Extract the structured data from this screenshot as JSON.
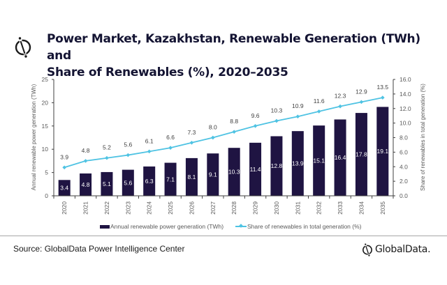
{
  "header": {
    "title_line1": "Power Market, Kazakhstan, Renewable Generation (TWh) and",
    "title_line2": "Share of Renewables (%), 2020–2035",
    "logo_icon": "globaldata-logo-icon"
  },
  "chart_data": {
    "type": "bar+line",
    "title": "Power Market, Kazakhstan, Renewable Generation (TWh) and Share of Renewables (%), 2020–2035",
    "categories": [
      "2020",
      "2021",
      "2022",
      "2023",
      "2024",
      "2025",
      "2026",
      "2027",
      "2028",
      "2029",
      "2030",
      "2031",
      "2032",
      "2033",
      "2034",
      "2035"
    ],
    "series": [
      {
        "name": "Annual renewable power generation (TWh)",
        "type": "bar",
        "axis": "left",
        "color": "#1f1442",
        "values": [
          3.4,
          4.8,
          5.1,
          5.6,
          6.3,
          7.1,
          8.1,
          9.1,
          10.3,
          11.4,
          12.8,
          13.9,
          15.1,
          16.4,
          17.8,
          19.1
        ],
        "labels": [
          "3.4",
          "4.8",
          "5.1",
          "5.6",
          "6.3",
          "7.1",
          "8.1",
          "9.1",
          "10.3",
          "11.4",
          "12.8",
          "13.9",
          "15.1",
          "16.4",
          "17.8",
          "19.1"
        ]
      },
      {
        "name": "Share of renewables in total generation (%)",
        "type": "line",
        "axis": "right",
        "color": "#4fc3e3",
        "values": [
          3.9,
          4.8,
          5.2,
          5.6,
          6.1,
          6.6,
          7.3,
          8.0,
          8.8,
          9.6,
          10.3,
          10.9,
          11.6,
          12.3,
          12.9,
          13.5
        ],
        "labels": [
          "3.9",
          "4.8",
          "5.2",
          "5.6",
          "6.1",
          "6.6",
          "7.3",
          "8.0",
          "8.8",
          "9.6",
          "10.3",
          "10.9",
          "11.6",
          "12.3",
          "12.9",
          "13.5"
        ]
      }
    ],
    "ylabel_left": "Annual renewable power generation (TWh)",
    "ylabel_right": "Share of renewables in total generation (%)",
    "ylim_left": [
      0,
      25
    ],
    "ylim_right": [
      0,
      16
    ],
    "yticks_left": [
      "0",
      "5",
      "10",
      "15",
      "20",
      "25"
    ],
    "yticks_right": [
      "0.0",
      "2.0",
      "4.0",
      "6.0",
      "8.0",
      "10.0",
      "12.0",
      "14.0",
      "16.0"
    ],
    "grid": false,
    "legend_position": "bottom"
  },
  "footer": {
    "source": "Source: GlobalData Power Intelligence Center",
    "brand": "GlobalData."
  }
}
